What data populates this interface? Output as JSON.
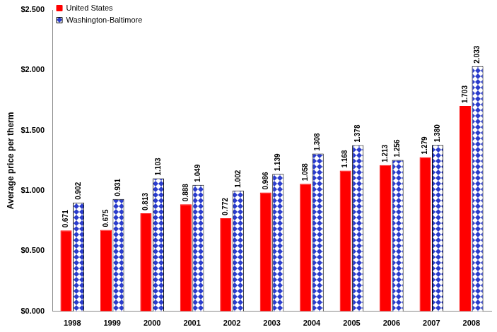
{
  "chart_data": {
    "type": "bar",
    "ylabel": "Average price per therm",
    "categories": [
      "1998",
      "1999",
      "2000",
      "2001",
      "2002",
      "2003",
      "2004",
      "2005",
      "2006",
      "2007",
      "2008"
    ],
    "series": [
      {
        "name": "United States",
        "color": "#ff0000",
        "values": [
          0.671,
          0.675,
          0.813,
          0.888,
          0.772,
          0.986,
          1.058,
          1.168,
          1.213,
          1.279,
          1.703
        ],
        "value_labels": [
          "0.671",
          "0.675",
          "0.813",
          "0.888",
          "0.772",
          "0.986",
          "1.058",
          "1.168",
          "1.213",
          "1.279",
          "1.703"
        ]
      },
      {
        "name": "Washington-Baltimore",
        "color": "#2a3ccc",
        "values": [
          0.902,
          0.931,
          1.103,
          1.049,
          1.002,
          1.139,
          1.308,
          1.378,
          1.256,
          1.38,
          2.033
        ],
        "value_labels": [
          "0.902",
          "0.931",
          "1.103",
          "1.049",
          "1.002",
          "1.139",
          "1.308",
          "1.378",
          "1.256",
          "1.380",
          "2.033"
        ]
      }
    ],
    "ylim": [
      0,
      2.5
    ],
    "yticks": [
      {
        "value": 0,
        "label": "$0.000"
      },
      {
        "value": 0.5,
        "label": "$0.500"
      },
      {
        "value": 1,
        "label": "$1.000"
      },
      {
        "value": 1.5,
        "label": "$1.500"
      },
      {
        "value": 2,
        "label": "$2.000"
      },
      {
        "value": 2.5,
        "label": "$2.500"
      }
    ],
    "grid": false,
    "legend": "top-left",
    "data_labels": true
  }
}
